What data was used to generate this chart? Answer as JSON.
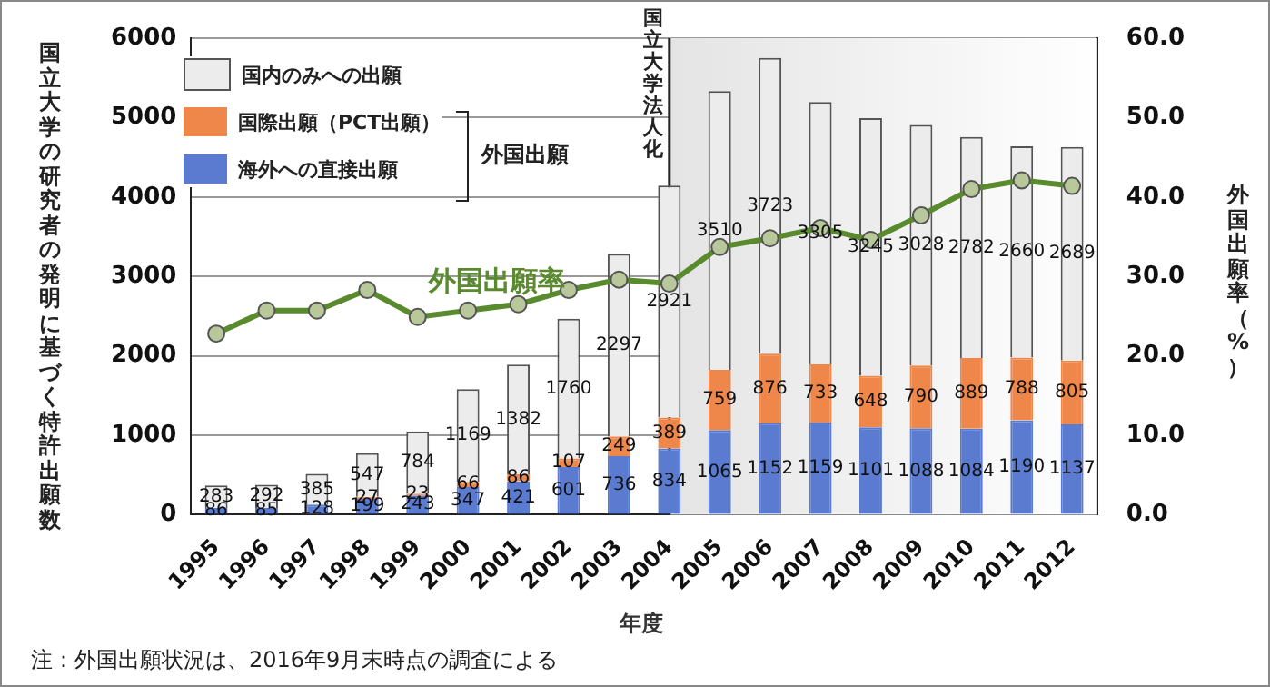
{
  "chart_data": {
    "type": "bar",
    "stacked": true,
    "categories": [
      "1995",
      "1996",
      "1997",
      "1998",
      "1999",
      "2000",
      "2001",
      "2002",
      "2003",
      "2004",
      "2005",
      "2006",
      "2007",
      "2008",
      "2009",
      "2010",
      "2011",
      "2012"
    ],
    "series": [
      {
        "name": "海外への直接出願",
        "color": "#5b7bd0",
        "values": [
          86,
          85,
          128,
          199,
          243,
          347,
          421,
          601,
          736,
          834,
          1065,
          1152,
          1159,
          1101,
          1088,
          1084,
          1190,
          1137
        ],
        "value_labels": [
          "86",
          "85",
          "128",
          "199",
          "243",
          "347",
          "421",
          "601",
          "736",
          "834",
          "1065",
          "1152",
          "1159",
          "1101",
          "1088",
          "1084",
          "1190",
          "1137"
        ]
      },
      {
        "name": "国際出願（PCT出願）",
        "color": "#f0874a",
        "values": [
          null,
          null,
          null,
          27,
          23,
          66,
          86,
          107,
          249,
          389,
          759,
          876,
          733,
          648,
          790,
          889,
          788,
          805
        ],
        "value_labels": [
          null,
          null,
          null,
          "27",
          "23",
          "66",
          "86",
          "107",
          "249",
          "389",
          "759",
          "876",
          "733",
          "648",
          "790",
          "889",
          "788",
          "805"
        ]
      },
      {
        "name": "国内のみへの出願",
        "color": "#ececec",
        "values": [
          283,
          292,
          385,
          547,
          784,
          1169,
          1382,
          1760,
          2297,
          2921,
          3510,
          3723,
          3305,
          3245,
          3028,
          2782,
          2660,
          2689
        ],
        "value_labels": [
          "283",
          "292",
          "385",
          "547",
          "784",
          "1169",
          "1382",
          "1760",
          "2297",
          "2921",
          "3510",
          "3723",
          "3305",
          "3245",
          "3028",
          "2782",
          "2660",
          "2689"
        ]
      },
      {
        "name": "外国出願率",
        "type": "line",
        "axis": "y2",
        "color": "#5a8a2e",
        "values": [
          22.8,
          25.7,
          25.7,
          28.3,
          24.9,
          25.7,
          26.5,
          28.3,
          29.6,
          29.1,
          33.7,
          34.8,
          36.1,
          34.6,
          37.7,
          41.0,
          42.1,
          41.4
        ]
      }
    ],
    "xlabel": "年度",
    "ylabel": "国立大学の研究者の発明に基づく特許出願数",
    "y2label": "外国出願率（%）",
    "ylim": [
      0,
      6000
    ],
    "yticks": [
      0,
      1000,
      2000,
      3000,
      4000,
      5000,
      6000
    ],
    "y2lim": [
      0,
      60
    ],
    "y2ticks": [
      {
        "value": 0,
        "label": "0.0"
      },
      {
        "value": 10,
        "label": "10.0"
      },
      {
        "value": 20,
        "label": "20.0"
      },
      {
        "value": 30,
        "label": "30.0"
      },
      {
        "value": 40,
        "label": "40.0"
      },
      {
        "value": 50,
        "label": "50.0"
      },
      {
        "value": 60,
        "label": "60.0"
      }
    ],
    "bands": [
      {
        "axis": "x",
        "from": "2004",
        "to": "2012",
        "color": "#e4e4e4"
      }
    ],
    "ref_lines": [
      {
        "axis": "x",
        "value": "2004",
        "label": "国立大学法人化",
        "color": "#222222"
      }
    ],
    "annotations": [
      "外国出願",
      "注：外国出願状況は、2016年9月末時点の調査による"
    ],
    "grid": "y",
    "legend": "top left",
    "marker": "circle",
    "line_style": "solid"
  }
}
